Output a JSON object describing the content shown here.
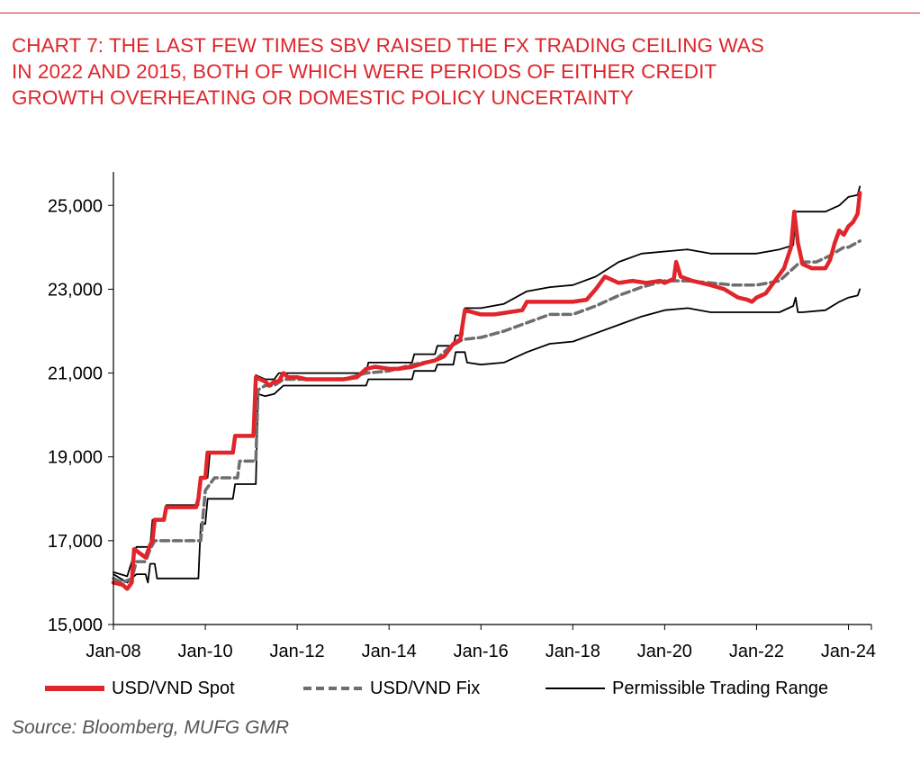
{
  "header": {
    "title_lines": [
      "CHART 7: THE LAST FEW TIMES SBV RAISED THE FX TRADING CEILING WAS",
      "IN 2022 AND 2015, BOTH OF WHICH WERE PERIODS OF EITHER CREDIT",
      "GROWTH OVERHEATING OR DOMESTIC POLICY UNCERTAINTY"
    ],
    "accent_color": "#e0252b"
  },
  "source": "Source: Bloomberg, MUFG GMR",
  "chart_data": {
    "type": "line",
    "title": "CHART 7: THE LAST FEW TIMES SBV RAISED THE FX TRADING CEILING WAS IN 2022 AND 2015, BOTH OF WHICH WERE PERIODS OF EITHER CREDIT GROWTH OVERHEATING OR DOMESTIC POLICY UNCERTAINTY",
    "xlabel": "",
    "ylabel": "",
    "xlim": [
      2008.0,
      2024.5
    ],
    "ylim": [
      15000,
      25800
    ],
    "x_ticks": [
      "Jan-08",
      "Jan-10",
      "Jan-12",
      "Jan-14",
      "Jan-16",
      "Jan-18",
      "Jan-20",
      "Jan-22",
      "Jan-24"
    ],
    "x_tick_values": [
      2008,
      2010,
      2012,
      2014,
      2016,
      2018,
      2020,
      2022,
      2024
    ],
    "y_ticks": [
      "15,000",
      "17,000",
      "19,000",
      "21,000",
      "23,000",
      "25,000"
    ],
    "y_tick_values": [
      15000,
      17000,
      19000,
      21000,
      23000,
      25000
    ],
    "legend_position": "bottom",
    "series": [
      {
        "name": "USD/VND Spot",
        "style": "solid-thick",
        "color": "#e0252b",
        "points": [
          [
            2008.0,
            16000
          ],
          [
            2008.2,
            15950
          ],
          [
            2008.3,
            15850
          ],
          [
            2008.4,
            16000
          ],
          [
            2008.45,
            16800
          ],
          [
            2008.7,
            16600
          ],
          [
            2008.8,
            16900
          ],
          [
            2008.85,
            17000
          ],
          [
            2008.9,
            17500
          ],
          [
            2009.1,
            17500
          ],
          [
            2009.15,
            17800
          ],
          [
            2009.8,
            17800
          ],
          [
            2009.85,
            18000
          ],
          [
            2009.9,
            18500
          ],
          [
            2010.0,
            18500
          ],
          [
            2010.05,
            19100
          ],
          [
            2010.6,
            19100
          ],
          [
            2010.65,
            19500
          ],
          [
            2011.05,
            19500
          ],
          [
            2011.1,
            20900
          ],
          [
            2011.3,
            20800
          ],
          [
            2011.4,
            20700
          ],
          [
            2011.5,
            20800
          ],
          [
            2011.6,
            20800
          ],
          [
            2011.7,
            21000
          ],
          [
            2011.8,
            20900
          ],
          [
            2012.0,
            20900
          ],
          [
            2012.2,
            20850
          ],
          [
            2012.5,
            20850
          ],
          [
            2012.8,
            20850
          ],
          [
            2013.0,
            20850
          ],
          [
            2013.3,
            20900
          ],
          [
            2013.5,
            21100
          ],
          [
            2013.7,
            21150
          ],
          [
            2014.0,
            21100
          ],
          [
            2014.2,
            21100
          ],
          [
            2014.5,
            21150
          ],
          [
            2014.8,
            21250
          ],
          [
            2015.0,
            21300
          ],
          [
            2015.2,
            21400
          ],
          [
            2015.4,
            21700
          ],
          [
            2015.55,
            21800
          ],
          [
            2015.65,
            22500
          ],
          [
            2016.0,
            22400
          ],
          [
            2016.3,
            22400
          ],
          [
            2016.6,
            22450
          ],
          [
            2016.9,
            22500
          ],
          [
            2017.0,
            22700
          ],
          [
            2017.3,
            22700
          ],
          [
            2017.6,
            22700
          ],
          [
            2017.9,
            22700
          ],
          [
            2018.0,
            22700
          ],
          [
            2018.3,
            22750
          ],
          [
            2018.5,
            23000
          ],
          [
            2018.7,
            23300
          ],
          [
            2019.0,
            23150
          ],
          [
            2019.3,
            23200
          ],
          [
            2019.6,
            23150
          ],
          [
            2019.9,
            23200
          ],
          [
            2020.0,
            23150
          ],
          [
            2020.2,
            23250
          ],
          [
            2020.25,
            23650
          ],
          [
            2020.35,
            23300
          ],
          [
            2020.6,
            23200
          ],
          [
            2021.0,
            23100
          ],
          [
            2021.3,
            23000
          ],
          [
            2021.6,
            22800
          ],
          [
            2021.8,
            22750
          ],
          [
            2021.9,
            22700
          ],
          [
            2022.0,
            22800
          ],
          [
            2022.2,
            22900
          ],
          [
            2022.4,
            23200
          ],
          [
            2022.6,
            23500
          ],
          [
            2022.75,
            24000
          ],
          [
            2022.82,
            24850
          ],
          [
            2022.9,
            24100
          ],
          [
            2023.0,
            23600
          ],
          [
            2023.2,
            23500
          ],
          [
            2023.4,
            23500
          ],
          [
            2023.5,
            23500
          ],
          [
            2023.6,
            23700
          ],
          [
            2023.7,
            24100
          ],
          [
            2023.8,
            24400
          ],
          [
            2023.9,
            24300
          ],
          [
            2024.0,
            24500
          ],
          [
            2024.1,
            24600
          ],
          [
            2024.2,
            24800
          ],
          [
            2024.25,
            25300
          ]
        ]
      },
      {
        "name": "USD/VND Fix",
        "style": "dashed",
        "color": "#6e6e6e",
        "points": [
          [
            2008.0,
            16100
          ],
          [
            2008.2,
            16000
          ],
          [
            2008.4,
            16100
          ],
          [
            2008.5,
            16500
          ],
          [
            2008.7,
            16500
          ],
          [
            2008.8,
            16800
          ],
          [
            2008.9,
            17000
          ],
          [
            2009.9,
            17000
          ],
          [
            2010.0,
            18200
          ],
          [
            2010.2,
            18500
          ],
          [
            2010.7,
            18500
          ],
          [
            2010.75,
            18900
          ],
          [
            2011.1,
            18900
          ],
          [
            2011.15,
            20600
          ],
          [
            2011.3,
            20700
          ],
          [
            2011.5,
            20700
          ],
          [
            2011.7,
            20850
          ],
          [
            2012.0,
            20850
          ],
          [
            2012.5,
            20850
          ],
          [
            2013.0,
            20850
          ],
          [
            2013.5,
            21000
          ],
          [
            2014.0,
            21050
          ],
          [
            2014.5,
            21200
          ],
          [
            2015.0,
            21300
          ],
          [
            2015.3,
            21600
          ],
          [
            2015.6,
            21800
          ],
          [
            2016.0,
            21850
          ],
          [
            2016.5,
            22000
          ],
          [
            2017.0,
            22200
          ],
          [
            2017.5,
            22400
          ],
          [
            2018.0,
            22400
          ],
          [
            2018.5,
            22600
          ],
          [
            2019.0,
            22850
          ],
          [
            2019.5,
            23050
          ],
          [
            2020.0,
            23200
          ],
          [
            2020.5,
            23200
          ],
          [
            2021.0,
            23150
          ],
          [
            2021.5,
            23100
          ],
          [
            2022.0,
            23100
          ],
          [
            2022.5,
            23200
          ],
          [
            2022.9,
            23600
          ],
          [
            2023.0,
            23650
          ],
          [
            2023.3,
            23650
          ],
          [
            2023.6,
            23800
          ],
          [
            2023.9,
            24000
          ],
          [
            2024.0,
            24000
          ],
          [
            2024.25,
            24150
          ]
        ]
      },
      {
        "name": "Permissible Trading Range (upper)",
        "style": "solid-thin",
        "color": "#000000",
        "points": [
          [
            2008.0,
            16250
          ],
          [
            2008.3,
            16150
          ],
          [
            2008.5,
            16850
          ],
          [
            2008.8,
            16850
          ],
          [
            2008.85,
            17500
          ],
          [
            2009.1,
            17500
          ],
          [
            2009.15,
            17850
          ],
          [
            2009.85,
            17850
          ],
          [
            2009.9,
            18500
          ],
          [
            2010.05,
            18500
          ],
          [
            2010.1,
            19100
          ],
          [
            2010.6,
            19100
          ],
          [
            2010.65,
            19500
          ],
          [
            2011.05,
            19500
          ],
          [
            2011.1,
            20950
          ],
          [
            2011.3,
            20850
          ],
          [
            2011.5,
            20850
          ],
          [
            2011.6,
            21000
          ],
          [
            2013.5,
            21000
          ],
          [
            2013.55,
            21250
          ],
          [
            2014.5,
            21250
          ],
          [
            2014.55,
            21450
          ],
          [
            2015.0,
            21450
          ],
          [
            2015.05,
            21650
          ],
          [
            2015.4,
            21650
          ],
          [
            2015.45,
            21900
          ],
          [
            2015.6,
            21900
          ],
          [
            2015.65,
            22550
          ],
          [
            2016.0,
            22550
          ],
          [
            2016.5,
            22650
          ],
          [
            2017.0,
            22950
          ],
          [
            2017.5,
            23050
          ],
          [
            2018.0,
            23100
          ],
          [
            2018.5,
            23300
          ],
          [
            2019.0,
            23650
          ],
          [
            2019.5,
            23850
          ],
          [
            2020.0,
            23900
          ],
          [
            2020.5,
            23950
          ],
          [
            2021.0,
            23850
          ],
          [
            2021.5,
            23850
          ],
          [
            2022.0,
            23850
          ],
          [
            2022.5,
            23950
          ],
          [
            2022.8,
            24050
          ],
          [
            2022.85,
            24850
          ],
          [
            2023.0,
            24850
          ],
          [
            2023.5,
            24850
          ],
          [
            2023.8,
            25000
          ],
          [
            2024.0,
            25200
          ],
          [
            2024.2,
            25250
          ],
          [
            2024.25,
            25450
          ]
        ]
      },
      {
        "name": "Permissible Trading Range (lower)",
        "style": "solid-thin",
        "color": "#000000",
        "points": [
          [
            2008.0,
            16200
          ],
          [
            2008.3,
            16000
          ],
          [
            2008.5,
            16200
          ],
          [
            2008.7,
            16200
          ],
          [
            2008.75,
            16000
          ],
          [
            2008.8,
            16450
          ],
          [
            2008.9,
            16450
          ],
          [
            2008.95,
            16100
          ],
          [
            2009.85,
            16100
          ],
          [
            2009.9,
            17400
          ],
          [
            2010.0,
            17400
          ],
          [
            2010.05,
            18000
          ],
          [
            2010.6,
            18000
          ],
          [
            2010.65,
            18350
          ],
          [
            2011.1,
            18350
          ],
          [
            2011.15,
            20500
          ],
          [
            2011.3,
            20450
          ],
          [
            2011.5,
            20500
          ],
          [
            2011.7,
            20700
          ],
          [
            2013.5,
            20700
          ],
          [
            2013.55,
            20850
          ],
          [
            2014.5,
            20850
          ],
          [
            2014.55,
            21050
          ],
          [
            2015.0,
            21050
          ],
          [
            2015.05,
            21200
          ],
          [
            2015.4,
            21200
          ],
          [
            2015.45,
            21500
          ],
          [
            2015.65,
            21500
          ],
          [
            2015.7,
            21250
          ],
          [
            2016.0,
            21200
          ],
          [
            2016.5,
            21250
          ],
          [
            2017.0,
            21500
          ],
          [
            2017.5,
            21700
          ],
          [
            2018.0,
            21750
          ],
          [
            2018.5,
            21950
          ],
          [
            2019.0,
            22150
          ],
          [
            2019.5,
            22350
          ],
          [
            2020.0,
            22500
          ],
          [
            2020.5,
            22550
          ],
          [
            2021.0,
            22450
          ],
          [
            2021.5,
            22450
          ],
          [
            2022.0,
            22450
          ],
          [
            2022.5,
            22450
          ],
          [
            2022.8,
            22600
          ],
          [
            2022.85,
            22800
          ],
          [
            2022.9,
            22450
          ],
          [
            2023.0,
            22450
          ],
          [
            2023.5,
            22500
          ],
          [
            2023.8,
            22700
          ],
          [
            2024.0,
            22800
          ],
          [
            2024.2,
            22850
          ],
          [
            2024.25,
            23000
          ]
        ]
      }
    ],
    "legend": [
      {
        "label": "USD/VND Spot",
        "color": "#e0252b",
        "style": "solid-thick"
      },
      {
        "label": "USD/VND Fix",
        "color": "#6e6e6e",
        "style": "dashed"
      },
      {
        "label": "Permissible Trading Range",
        "color": "#000000",
        "style": "solid-thin"
      }
    ]
  }
}
